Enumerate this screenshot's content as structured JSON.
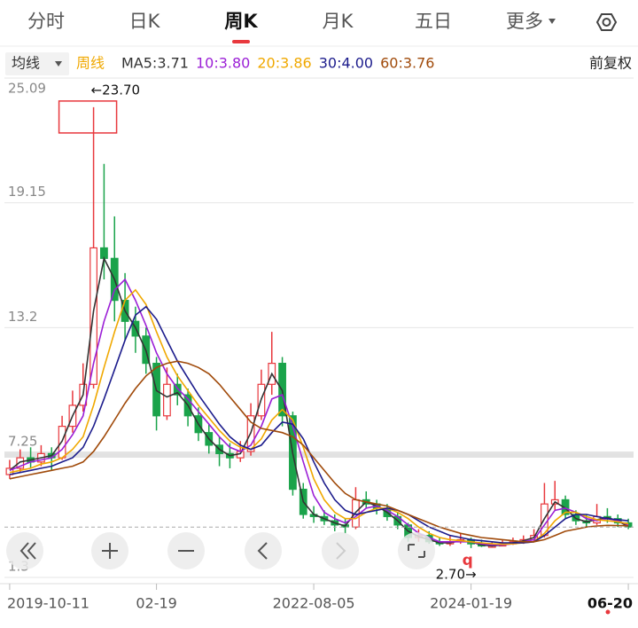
{
  "tabs": [
    {
      "label": "分时"
    },
    {
      "label": "日K"
    },
    {
      "label": "周K",
      "selected": true
    },
    {
      "label": "月K"
    },
    {
      "label": "五日"
    },
    {
      "label": "更多"
    }
  ],
  "toolbar": {
    "ma_menu": "均线",
    "period": "周线",
    "adjust": "前复权"
  },
  "chart_data": {
    "type": "candlestick",
    "categories": [
      "2019-10-11",
      null,
      null,
      null,
      null,
      null,
      null,
      null,
      null,
      null,
      null,
      null,
      null,
      null,
      "02-19",
      null,
      null,
      null,
      null,
      null,
      null,
      null,
      null,
      null,
      null,
      null,
      null,
      null,
      null,
      "2022-08-05",
      null,
      null,
      null,
      null,
      null,
      null,
      null,
      null,
      null,
      null,
      null,
      null,
      null,
      null,
      "2024-01-19",
      null,
      null,
      null,
      null,
      null,
      null,
      null,
      null,
      null,
      null,
      null,
      null,
      null,
      null,
      "06-20"
    ],
    "candles": [
      [
        6.2,
        6.9,
        6.0,
        6.5
      ],
      [
        6.5,
        7.4,
        6.3,
        7.0
      ],
      [
        7.0,
        7.5,
        6.5,
        6.8
      ],
      [
        6.8,
        7.6,
        6.6,
        7.2
      ],
      [
        7.2,
        7.5,
        6.4,
        7.0
      ],
      [
        7.0,
        9.0,
        6.9,
        8.5
      ],
      [
        8.5,
        10.2,
        8.2,
        9.5
      ],
      [
        9.5,
        11.5,
        9.2,
        10.5
      ],
      [
        10.5,
        23.7,
        10.3,
        17.0
      ],
      [
        17.0,
        21.0,
        15.5,
        16.5
      ],
      [
        16.5,
        18.5,
        13.5,
        14.5
      ],
      [
        14.5,
        15.8,
        12.6,
        13.5
      ],
      [
        13.5,
        14.2,
        12.0,
        12.8
      ],
      [
        12.8,
        13.2,
        11.0,
        11.5
      ],
      [
        11.5,
        11.8,
        8.3,
        9.0
      ],
      [
        9.0,
        11.3,
        8.8,
        10.5
      ],
      [
        10.5,
        11.0,
        9.5,
        10.0
      ],
      [
        10.0,
        10.3,
        8.5,
        9.0
      ],
      [
        9.0,
        9.4,
        7.8,
        8.2
      ],
      [
        8.2,
        8.6,
        7.2,
        7.6
      ],
      [
        7.6,
        8.0,
        6.6,
        7.2
      ],
      [
        7.2,
        7.7,
        6.5,
        7.0
      ],
      [
        7.0,
        7.8,
        6.8,
        7.3
      ],
      [
        7.3,
        9.6,
        7.1,
        9.0
      ],
      [
        9.0,
        11.2,
        8.8,
        10.5
      ],
      [
        10.5,
        13.0,
        10.0,
        11.5
      ],
      [
        11.5,
        11.8,
        8.5,
        9.0
      ],
      [
        9.0,
        9.2,
        5.2,
        5.5
      ],
      [
        5.5,
        5.8,
        4.1,
        4.3
      ],
      [
        4.3,
        4.7,
        3.9,
        4.2
      ],
      [
        4.2,
        4.5,
        3.8,
        4.0
      ],
      [
        4.0,
        4.3,
        3.5,
        3.8
      ],
      [
        3.8,
        4.1,
        3.4,
        3.7
      ],
      [
        3.7,
        5.6,
        3.6,
        5.0
      ],
      [
        5.0,
        5.4,
        4.6,
        4.8
      ],
      [
        4.8,
        5.0,
        4.3,
        4.6
      ],
      [
        4.6,
        4.8,
        4.0,
        4.2
      ],
      [
        4.2,
        4.4,
        3.6,
        3.8
      ],
      [
        3.8,
        3.9,
        3.0,
        3.2
      ],
      [
        3.2,
        3.6,
        3.0,
        3.3
      ],
      [
        3.3,
        3.5,
        2.9,
        3.0
      ],
      [
        3.0,
        3.2,
        2.8,
        2.9
      ],
      [
        2.9,
        3.3,
        2.8,
        3.0
      ],
      [
        3.0,
        3.4,
        2.9,
        3.1
      ],
      [
        3.1,
        3.2,
        2.7,
        2.9
      ],
      [
        2.9,
        3.1,
        2.75,
        2.8
      ],
      [
        2.8,
        3.0,
        2.75,
        2.8
      ],
      [
        2.8,
        3.1,
        2.8,
        2.9
      ],
      [
        2.9,
        3.2,
        2.85,
        3.0
      ],
      [
        3.0,
        3.3,
        2.9,
        3.1
      ],
      [
        3.1,
        3.6,
        3.0,
        3.3
      ],
      [
        3.3,
        5.8,
        3.2,
        4.8
      ],
      [
        4.8,
        5.9,
        4.5,
        5.0
      ],
      [
        5.0,
        5.2,
        4.1,
        4.3
      ],
      [
        4.3,
        4.5,
        3.8,
        4.0
      ],
      [
        4.0,
        4.3,
        3.7,
        3.9
      ],
      [
        3.9,
        4.8,
        3.8,
        4.2
      ],
      [
        4.2,
        4.6,
        3.9,
        4.1
      ],
      [
        4.1,
        4.3,
        3.7,
        3.9
      ],
      [
        3.9,
        4.1,
        3.6,
        3.7
      ]
    ],
    "up_color": "#e8383d",
    "down_color": "#1aa34a",
    "series": [
      {
        "name": "MA5:3.71",
        "color": "#333333",
        "values": [
          6.4,
          6.8,
          6.9,
          7.0,
          7.1,
          7.8,
          9.0,
          10.0,
          14.0,
          16.5,
          15.5,
          14.0,
          13.2,
          12.1,
          10.2,
          9.9,
          10.1,
          9.5,
          8.6,
          7.9,
          7.4,
          7.1,
          7.2,
          8.2,
          9.8,
          11.0,
          10.2,
          7.2,
          4.9,
          4.3,
          4.1,
          3.9,
          3.75,
          4.4,
          4.9,
          4.7,
          4.4,
          4.0,
          3.5,
          3.25,
          3.1,
          2.95,
          2.95,
          3.05,
          3.0,
          2.85,
          2.8,
          2.85,
          2.95,
          3.05,
          3.2,
          4.1,
          4.9,
          4.6,
          4.1,
          3.95,
          4.05,
          4.15,
          4.0,
          3.71
        ]
      },
      {
        "name": "10:3.80",
        "color": "#9b1fd6",
        "values": [
          6.4,
          6.6,
          6.8,
          6.9,
          7.0,
          7.4,
          8.1,
          9.0,
          11.5,
          13.5,
          15.0,
          15.5,
          14.5,
          13.3,
          12.0,
          11.0,
          10.3,
          9.8,
          9.2,
          8.6,
          8.0,
          7.5,
          7.3,
          7.6,
          8.5,
          9.8,
          10.0,
          8.5,
          6.8,
          5.2,
          4.4,
          4.1,
          3.9,
          4.2,
          4.6,
          4.7,
          4.5,
          4.2,
          3.8,
          3.4,
          3.2,
          3.0,
          3.0,
          3.0,
          3.0,
          2.9,
          2.85,
          2.85,
          2.9,
          3.0,
          3.1,
          3.8,
          4.5,
          4.6,
          4.4,
          4.1,
          4.0,
          4.1,
          4.0,
          3.8
        ]
      },
      {
        "name": "20:3.86",
        "color": "#f0a800",
        "values": [
          6.3,
          6.4,
          6.5,
          6.7,
          6.8,
          7.0,
          7.4,
          8.0,
          9.5,
          11.3,
          13.0,
          14.5,
          15.0,
          14.3,
          13.0,
          11.8,
          10.9,
          10.2,
          9.5,
          8.9,
          8.3,
          7.8,
          7.5,
          7.4,
          7.9,
          8.8,
          9.3,
          8.8,
          7.5,
          6.0,
          5.0,
          4.4,
          4.1,
          4.1,
          4.4,
          4.6,
          4.6,
          4.4,
          4.1,
          3.7,
          3.4,
          3.2,
          3.1,
          3.05,
          3.0,
          2.95,
          2.9,
          2.88,
          2.9,
          2.95,
          3.0,
          3.4,
          4.0,
          4.4,
          4.4,
          4.2,
          4.05,
          4.0,
          3.95,
          3.86
        ]
      },
      {
        "name": "30:4.00",
        "color": "#1c1c8c",
        "values": [
          6.2,
          6.3,
          6.4,
          6.5,
          6.6,
          6.8,
          7.0,
          7.5,
          8.5,
          9.8,
          11.2,
          12.6,
          13.8,
          14.2,
          13.6,
          12.6,
          11.6,
          10.8,
          10.0,
          9.3,
          8.6,
          8.0,
          7.6,
          7.4,
          7.6,
          8.2,
          8.7,
          8.6,
          7.9,
          6.8,
          5.8,
          5.0,
          4.5,
          4.3,
          4.4,
          4.5,
          4.6,
          4.5,
          4.3,
          4.0,
          3.7,
          3.5,
          3.3,
          3.2,
          3.1,
          3.05,
          3.0,
          2.95,
          2.95,
          2.95,
          3.0,
          3.3,
          3.7,
          4.1,
          4.3,
          4.3,
          4.2,
          4.1,
          4.05,
          4.0
        ]
      },
      {
        "name": "60:3.76",
        "color": "#a04a0a",
        "values": [
          6.0,
          6.1,
          6.2,
          6.3,
          6.4,
          6.5,
          6.6,
          6.8,
          7.3,
          8.0,
          8.8,
          9.6,
          10.3,
          10.9,
          11.3,
          11.5,
          11.6,
          11.5,
          11.3,
          11.0,
          10.5,
          9.9,
          9.3,
          8.7,
          8.4,
          8.3,
          8.2,
          8.0,
          7.6,
          7.0,
          6.4,
          5.8,
          5.3,
          5.0,
          4.9,
          4.8,
          4.7,
          4.5,
          4.3,
          4.1,
          3.9,
          3.7,
          3.55,
          3.4,
          3.3,
          3.2,
          3.15,
          3.1,
          3.05,
          3.0,
          3.0,
          3.1,
          3.3,
          3.5,
          3.6,
          3.7,
          3.75,
          3.78,
          3.77,
          3.76
        ]
      }
    ],
    "ylim": [
      1.3,
      25.09
    ],
    "yticks": [
      1.3,
      7.25,
      13.2,
      19.15,
      25.09
    ],
    "grid": true,
    "max_label": "←23.70",
    "min_label": "2.70→",
    "marker": "q"
  }
}
